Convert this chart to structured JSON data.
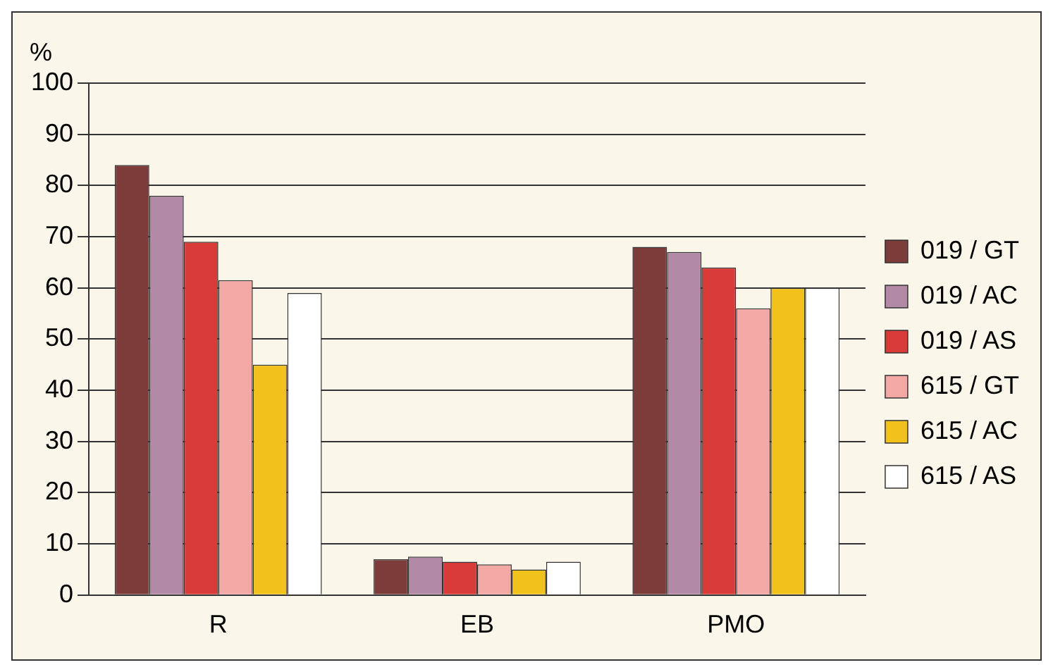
{
  "chart_data": {
    "type": "bar",
    "ylabel": "%",
    "categories": [
      "R",
      "EB",
      "PMO"
    ],
    "series": [
      {
        "name": "019 / GT",
        "color": "#7b3c3a",
        "values": [
          84,
          7,
          68
        ]
      },
      {
        "name": "019 / AC",
        "color": "#b28aa6",
        "values": [
          78,
          7.5,
          67
        ]
      },
      {
        "name": "019 / AS",
        "color": "#d83b38",
        "values": [
          69,
          6.5,
          64
        ]
      },
      {
        "name": "615 / GT",
        "color": "#f2a9a6",
        "values": [
          61.5,
          6,
          56
        ]
      },
      {
        "name": "615 / AC",
        "color": "#f1c21c",
        "values": [
          45,
          5,
          60
        ]
      },
      {
        "name": "615 / AS",
        "color": "#ffffff",
        "values": [
          59,
          6.5,
          60
        ]
      }
    ],
    "ylim": [
      0,
      100
    ],
    "yticks": [
      0,
      10,
      20,
      30,
      40,
      50,
      60,
      70,
      80,
      90,
      100
    ],
    "grid": "y",
    "legend": "right"
  }
}
